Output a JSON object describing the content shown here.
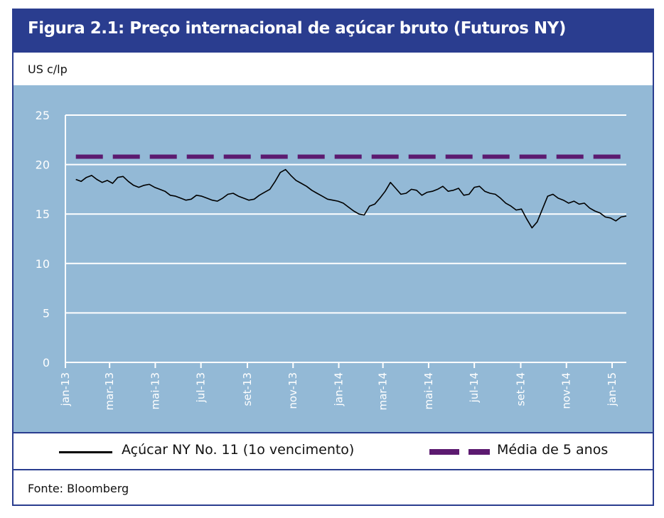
{
  "figure": {
    "title": "Figura 2.1:  Preço internacional de açúcar bruto (Futuros NY)",
    "unit_label": "US c/lp",
    "source": "Fonte: Bloomberg"
  },
  "colors": {
    "frame": "#2a3d8f",
    "plot_background": "#93b9d6",
    "gridline": "#ffffff",
    "price_line": "#000000",
    "average_line": "#5c1a70"
  },
  "chart_data": {
    "type": "line",
    "title": "Figura 2.1:  Preço internacional de açúcar bruto (Futuros NY)",
    "ylabel": "US c/lp",
    "xlabel": "",
    "ylim": [
      0,
      25
    ],
    "yticks": [
      0,
      5,
      10,
      15,
      20,
      25
    ],
    "xlim": [
      "2013-01-01",
      "2015-01-20"
    ],
    "xticks": [
      {
        "date": "2013-01-01",
        "label": "jan-13"
      },
      {
        "date": "2013-03-01",
        "label": "mar-13"
      },
      {
        "date": "2013-05-01",
        "label": "mai-13"
      },
      {
        "date": "2013-07-01",
        "label": "jul-13"
      },
      {
        "date": "2013-09-01",
        "label": "set-13"
      },
      {
        "date": "2013-11-01",
        "label": "nov-13"
      },
      {
        "date": "2014-01-01",
        "label": "jan-14"
      },
      {
        "date": "2014-03-01",
        "label": "mar-14"
      },
      {
        "date": "2014-05-01",
        "label": "mai-14"
      },
      {
        "date": "2014-07-01",
        "label": "jul-14"
      },
      {
        "date": "2014-09-01",
        "label": "set-14"
      },
      {
        "date": "2014-11-01",
        "label": "nov-14"
      },
      {
        "date": "2015-01-01",
        "label": "jan-15"
      }
    ],
    "grid": true,
    "legend_position": "bottom",
    "series": [
      {
        "name": "Açúcar NY No. 11 (1o vencimento)",
        "style": "solid",
        "x": [
          "2013-01-15",
          "2013-01-22",
          "2013-01-29",
          "2013-02-05",
          "2013-02-12",
          "2013-02-19",
          "2013-02-26",
          "2013-03-05",
          "2013-03-12",
          "2013-03-19",
          "2013-03-26",
          "2013-04-02",
          "2013-04-09",
          "2013-04-16",
          "2013-04-23",
          "2013-04-30",
          "2013-05-07",
          "2013-05-14",
          "2013-05-21",
          "2013-05-28",
          "2013-06-04",
          "2013-06-11",
          "2013-06-18",
          "2013-06-25",
          "2013-07-02",
          "2013-07-09",
          "2013-07-16",
          "2013-07-23",
          "2013-07-30",
          "2013-08-06",
          "2013-08-13",
          "2013-08-20",
          "2013-08-27",
          "2013-09-03",
          "2013-09-10",
          "2013-09-17",
          "2013-09-24",
          "2013-10-01",
          "2013-10-08",
          "2013-10-15",
          "2013-10-22",
          "2013-10-29",
          "2013-11-05",
          "2013-11-12",
          "2013-11-19",
          "2013-11-26",
          "2013-12-03",
          "2013-12-10",
          "2013-12-17",
          "2013-12-24",
          "2013-12-31",
          "2014-01-07",
          "2014-01-14",
          "2014-01-21",
          "2014-01-28",
          "2014-02-04",
          "2014-02-11",
          "2014-02-18",
          "2014-02-25",
          "2014-03-04",
          "2014-03-11",
          "2014-03-18",
          "2014-03-25",
          "2014-04-01",
          "2014-04-08",
          "2014-04-15",
          "2014-04-22",
          "2014-04-29",
          "2014-05-06",
          "2014-05-13",
          "2014-05-20",
          "2014-05-27",
          "2014-06-03",
          "2014-06-10",
          "2014-06-17",
          "2014-06-24",
          "2014-07-01",
          "2014-07-08",
          "2014-07-15",
          "2014-07-22",
          "2014-07-29",
          "2014-08-05",
          "2014-08-12",
          "2014-08-19",
          "2014-08-26",
          "2014-09-02",
          "2014-09-09",
          "2014-09-16",
          "2014-09-23",
          "2014-09-30",
          "2014-10-07",
          "2014-10-14",
          "2014-10-21",
          "2014-10-28",
          "2014-11-04",
          "2014-11-11",
          "2014-11-18",
          "2014-11-25",
          "2014-12-02",
          "2014-12-09",
          "2014-12-16",
          "2014-12-23",
          "2014-12-30",
          "2015-01-06",
          "2015-01-13",
          "2015-01-20"
        ],
        "y": [
          18.5,
          18.3,
          18.7,
          18.9,
          18.5,
          18.2,
          18.4,
          18.1,
          18.7,
          18.8,
          18.3,
          17.9,
          17.7,
          17.9,
          18.0,
          17.7,
          17.5,
          17.3,
          16.9,
          16.8,
          16.6,
          16.4,
          16.5,
          16.9,
          16.8,
          16.6,
          16.4,
          16.3,
          16.6,
          17.0,
          17.1,
          16.8,
          16.6,
          16.4,
          16.5,
          16.9,
          17.2,
          17.5,
          18.3,
          19.2,
          19.5,
          18.9,
          18.4,
          18.1,
          17.8,
          17.4,
          17.1,
          16.8,
          16.5,
          16.4,
          16.3,
          16.1,
          15.7,
          15.3,
          15.0,
          14.9,
          15.8,
          16.0,
          16.6,
          17.3,
          18.2,
          17.6,
          17.0,
          17.1,
          17.5,
          17.4,
          16.9,
          17.2,
          17.3,
          17.5,
          17.8,
          17.3,
          17.4,
          17.6,
          16.9,
          17.0,
          17.7,
          17.8,
          17.3,
          17.1,
          17.0,
          16.6,
          16.1,
          15.8,
          15.4,
          15.5,
          14.5,
          13.6,
          14.2,
          15.5,
          16.8,
          17.0,
          16.6,
          16.4,
          16.1,
          16.3,
          16.0,
          16.1,
          15.6,
          15.3,
          15.1,
          14.7,
          14.6,
          14.3,
          14.7,
          14.8
        ]
      },
      {
        "name": "Média de 5 anos",
        "style": "dashed",
        "x": [
          "2013-01-15",
          "2015-01-20"
        ],
        "y": [
          20.8,
          20.8
        ]
      }
    ]
  }
}
